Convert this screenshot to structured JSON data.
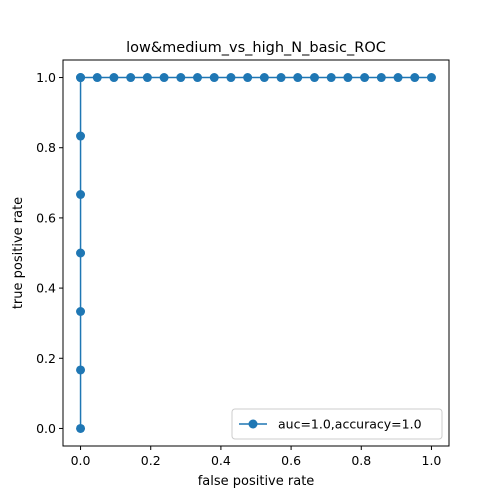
{
  "chart_data": {
    "type": "line",
    "title": "low&medium_vs_high_N_basic_ROC",
    "xlabel": "false positive rate",
    "ylabel": "true positive rate",
    "xlim": [
      -0.05,
      1.05
    ],
    "ylim": [
      -0.05,
      1.05
    ],
    "xticks": [
      0.0,
      0.2,
      0.4,
      0.6,
      0.8,
      1.0
    ],
    "yticks": [
      0.0,
      0.2,
      0.4,
      0.6,
      0.8,
      1.0
    ],
    "xtick_labels": [
      "0.0",
      "0.2",
      "0.4",
      "0.6",
      "0.8",
      "1.0"
    ],
    "ytick_labels": [
      "0.0",
      "0.2",
      "0.4",
      "0.6",
      "0.8",
      "1.0"
    ],
    "grid": false,
    "legend_position": "lower-right",
    "series": [
      {
        "name": "auc=1.0,accuracy=1.0",
        "color": "#1f77b4",
        "marker": "circle",
        "x": [
          0,
          0,
          0,
          0,
          0,
          0,
          0,
          0,
          0.0476,
          0.0952,
          0.1429,
          0.1905,
          0.2381,
          0.2857,
          0.3333,
          0.381,
          0.4286,
          0.4762,
          0.5238,
          0.5714,
          0.619,
          0.6667,
          0.7143,
          0.7619,
          0.8095,
          0.8571,
          0.9048,
          0.9524,
          1.0
        ],
        "y": [
          0,
          0.1667,
          0.3333,
          0.5,
          0.6667,
          0.8333,
          1.0,
          1.0,
          1.0,
          1.0,
          1.0,
          1.0,
          1.0,
          1.0,
          1.0,
          1.0,
          1.0,
          1.0,
          1.0,
          1.0,
          1.0,
          1.0,
          1.0,
          1.0,
          1.0,
          1.0,
          1.0,
          1.0,
          1.0
        ]
      }
    ]
  }
}
